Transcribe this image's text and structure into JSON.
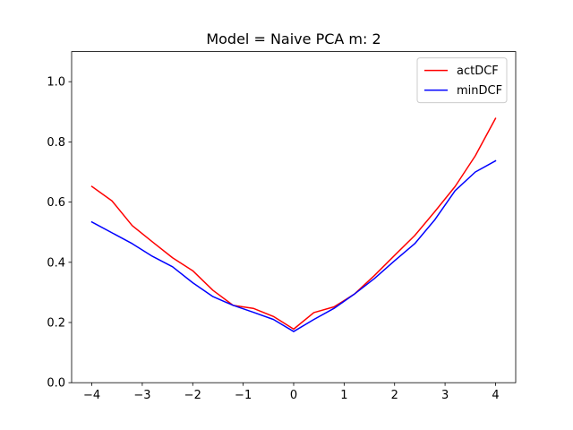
{
  "chart_data": {
    "type": "line",
    "title": "Model = Naive PCA m: 2",
    "xlabel": "",
    "ylabel": "",
    "xlim": [
      -4.4,
      4.4
    ],
    "ylim": [
      0.0,
      1.1
    ],
    "xticks": [
      -4,
      -3,
      -2,
      -1,
      0,
      1,
      2,
      3,
      4
    ],
    "xtick_labels": [
      "−4",
      "−3",
      "−2",
      "−1",
      "0",
      "1",
      "2",
      "3",
      "4"
    ],
    "yticks": [
      0.0,
      0.2,
      0.4,
      0.6,
      0.8,
      1.0
    ],
    "ytick_labels": [
      "0.0",
      "0.2",
      "0.4",
      "0.6",
      "0.8",
      "1.0"
    ],
    "grid": false,
    "legend_position": "top-right",
    "x": [
      -4.0,
      -3.6,
      -3.2,
      -2.8,
      -2.4,
      -2.0,
      -1.6,
      -1.2,
      -0.8,
      -0.4,
      0.0,
      0.4,
      0.8,
      1.2,
      1.6,
      2.0,
      2.4,
      2.8,
      3.2,
      3.6,
      4.0
    ],
    "series": [
      {
        "name": "actDCF",
        "color": "#ff0000",
        "values": [
          0.652,
          0.604,
          0.522,
          0.468,
          0.415,
          0.372,
          0.307,
          0.257,
          0.247,
          0.22,
          0.178,
          0.233,
          0.252,
          0.294,
          0.356,
          0.423,
          0.489,
          0.569,
          0.652,
          0.754,
          0.878
        ]
      },
      {
        "name": "minDCF",
        "color": "#0000ff",
        "values": [
          0.534,
          0.498,
          0.462,
          0.42,
          0.385,
          0.332,
          0.286,
          0.257,
          0.234,
          0.21,
          0.17,
          0.21,
          0.247,
          0.294,
          0.346,
          0.405,
          0.462,
          0.542,
          0.638,
          0.7,
          0.737
        ]
      }
    ]
  }
}
